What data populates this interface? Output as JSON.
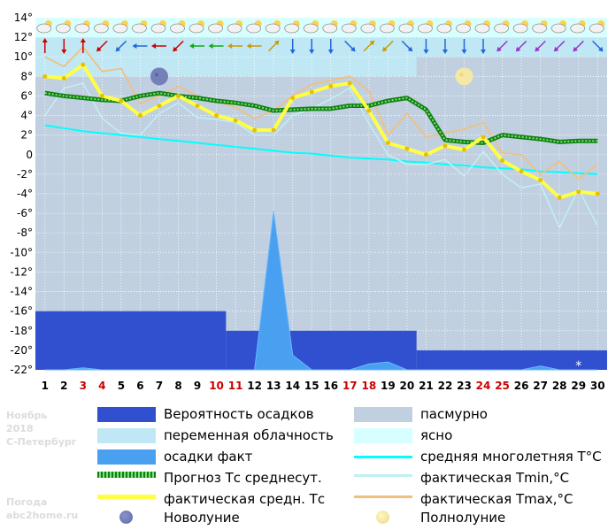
{
  "chart_data": {
    "type": "line",
    "x": [
      1,
      2,
      3,
      4,
      5,
      6,
      7,
      8,
      9,
      10,
      11,
      12,
      13,
      14,
      15,
      16,
      17,
      18,
      19,
      20,
      21,
      22,
      23,
      24,
      25,
      26,
      27,
      28,
      29,
      30
    ],
    "x_labels": [
      "1",
      "2",
      "3",
      "4",
      "5",
      "6",
      "7",
      "8",
      "9",
      "10",
      "11",
      "12",
      "13",
      "14",
      "15",
      "16",
      "17",
      "18",
      "19",
      "20",
      "21",
      "22",
      "23",
      "24",
      "25",
      "26",
      "27",
      "28",
      "29",
      "30"
    ],
    "x_label_colors": [
      "#000000",
      "#000000",
      "#cc0000",
      "#cc0000",
      "#000000",
      "#000000",
      "#000000",
      "#000000",
      "#000000",
      "#cc0000",
      "#cc0000",
      "#000000",
      "#000000",
      "#000000",
      "#000000",
      "#000000",
      "#cc0000",
      "#cc0000",
      "#000000",
      "#000000",
      "#000000",
      "#000000",
      "#000000",
      "#cc0000",
      "#cc0000",
      "#000000",
      "#000000",
      "#000000",
      "#000000",
      "#000000"
    ],
    "y_ticks": [
      "14°",
      "12°",
      "10°",
      "8°",
      "6°",
      "4°",
      "2°",
      "0",
      "-2°",
      "-4°",
      "-6°",
      "-8°",
      "-10°",
      "-12°",
      "-14°",
      "-16°",
      "-18°",
      "-20°",
      "-22°"
    ],
    "ylim": [
      -22,
      14
    ],
    "series": [
      {
        "name": "средняя многолетняя T°C",
        "color": "#00ffff",
        "values": [
          3.0,
          2.7,
          2.4,
          2.2,
          2.0,
          1.8,
          1.6,
          1.4,
          1.2,
          1.0,
          0.8,
          0.6,
          0.4,
          0.2,
          0.1,
          -0.1,
          -0.3,
          -0.4,
          -0.5,
          -0.7,
          -0.8,
          -1.0,
          -1.1,
          -1.3,
          -1.4,
          -1.5,
          -1.7,
          -1.8,
          -1.9,
          -2.0
        ]
      },
      {
        "name": "фактическая Tmin,°C",
        "color": "#c0f0f4",
        "values": [
          4.0,
          6.8,
          7.3,
          3.7,
          2.2,
          2.0,
          4.2,
          5.3,
          3.8,
          3.6,
          3.3,
          2.0,
          2.0,
          4.0,
          4.7,
          5.7,
          6.8,
          3.2,
          0.0,
          -1.0,
          -1.0,
          -0.5,
          -2.2,
          0.3,
          -2.0,
          -3.4,
          -3.0,
          -7.5,
          -3.5,
          -7.3
        ]
      },
      {
        "name": "фактическая Tmax,°C",
        "color": "#f0c080",
        "values": [
          10.0,
          9.0,
          11.0,
          8.5,
          8.8,
          5.2,
          6.0,
          7.0,
          6.0,
          5.5,
          4.8,
          3.7,
          4.5,
          6.0,
          7.2,
          7.6,
          8.0,
          6.5,
          2.0,
          4.2,
          1.8,
          2.2,
          2.6,
          3.3,
          0.2,
          0.0,
          -2.0,
          -0.7,
          -2.5,
          -1.0
        ]
      },
      {
        "name": "Прогноз Tc среднесут.",
        "color": "#108010",
        "values": [
          6.3,
          6.0,
          5.8,
          5.6,
          5.5,
          6.0,
          6.3,
          6.0,
          5.8,
          5.5,
          5.3,
          5.0,
          4.5,
          4.6,
          4.7,
          4.7,
          5.0,
          5.0,
          5.5,
          5.8,
          4.6,
          1.5,
          1.3,
          1.2,
          2.0,
          1.8,
          1.6,
          1.3,
          1.4,
          1.4
        ]
      },
      {
        "name": "фактическая средн. Tc",
        "color": "#ffff44",
        "values": [
          8.0,
          7.8,
          9.2,
          6.0,
          5.5,
          4.0,
          5.0,
          6.0,
          5.0,
          4.0,
          3.5,
          2.5,
          2.5,
          5.8,
          6.4,
          7.0,
          7.3,
          4.5,
          1.2,
          0.6,
          0.0,
          0.9,
          0.5,
          1.8,
          -0.6,
          -1.7,
          -2.6,
          -4.4,
          -3.8,
          -4.0
        ]
      }
    ],
    "precip_fact": [
      -22,
      -22,
      -21.8,
      -22,
      -22,
      -22,
      -22,
      -22,
      -22,
      -22,
      -22,
      -22,
      -5.8,
      -20.5,
      -22,
      -22,
      -22,
      -21.4,
      -21.2,
      -22,
      -22,
      -22,
      -22,
      -22,
      -22,
      -22,
      -21.6,
      -22,
      -22,
      -22
    ],
    "precip_probability_bands": [
      {
        "from_day": 1,
        "to_day": 10,
        "level": -16
      },
      {
        "from_day": 11,
        "to_day": 20,
        "level": -18
      },
      {
        "from_day": 21,
        "to_day": 30,
        "level": -20
      }
    ],
    "cloud_bands": [
      {
        "from_day": 1,
        "to_day": 10,
        "type": "переменная облачность",
        "bottom": 8
      },
      {
        "from_day": 11,
        "to_day": 20,
        "type": "переменная облачность",
        "bottom": 8
      },
      {
        "from_day": 21,
        "to_day": 30,
        "type": "переменная облачность",
        "bottom": 10
      }
    ],
    "moon_phases": [
      {
        "day": 7,
        "type": "Новолуние"
      },
      {
        "day": 23,
        "type": "Полнолуние"
      }
    ],
    "snow_marker_day": 29,
    "wind_directions": [
      "N",
      "S",
      "N",
      "SW",
      "SW",
      "W",
      "W",
      "SW",
      "W",
      "W",
      "W",
      "W",
      "NE",
      "S",
      "S",
      "S",
      "SE",
      "NE",
      "SW",
      "SE",
      "S",
      "S",
      "S",
      "S",
      "SW",
      "SW",
      "SW",
      "SW",
      "SW",
      "SE"
    ],
    "wind_colors": [
      "#cc0000",
      "#cc0000",
      "#cc0000",
      "#cc0000",
      "#2266dd",
      "#2266dd",
      "#cc0000",
      "#cc0000",
      "#11aa11",
      "#11aa11",
      "#cc9900",
      "#cc9900",
      "#cc9900",
      "#2266dd",
      "#2266dd",
      "#2266dd",
      "#2266dd",
      "#cc9900",
      "#cc9900",
      "#2266dd",
      "#2266dd",
      "#2266dd",
      "#2266dd",
      "#2266dd",
      "#9933cc",
      "#9933cc",
      "#9933cc",
      "#9933cc",
      "#9933cc",
      "#2266dd"
    ],
    "colors": {
      "precip_probability": "#3050d0",
      "precip_fact": "#4aa0f0",
      "overcast": "#c0d0e0",
      "partly_cloudy": "#bfe8f4",
      "clear": "#d8ffff"
    }
  },
  "watermark": {
    "month": "Ноябрь",
    "year": "2018",
    "city": "С-Петербург",
    "site1": "Погода",
    "site2": "abc2home.ru"
  },
  "legend": {
    "precip_probability": "Вероятность осадков",
    "overcast": "пасмурно",
    "partly_cloudy": "переменная облачность",
    "clear": "ясно",
    "precip_fact": "осадки факт",
    "climate_mean": "средняя многолетняя T°C",
    "forecast": "Прогноз Тс среднесут.",
    "tmin": "фактическая Tmin,°C",
    "tmean": "фактическая средн. Тс",
    "tmax": "фактическая Tmax,°C",
    "new_moon": "Новолуние",
    "full_moon": "Полнолуние"
  }
}
